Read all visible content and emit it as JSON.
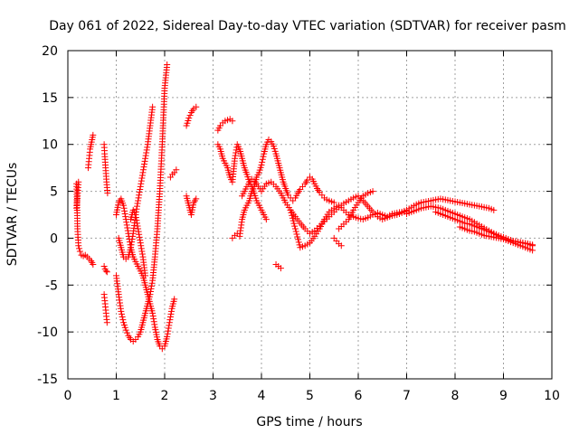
{
  "chart_data": {
    "type": "scatter",
    "title": "Day 061 of 2022, Sidereal Day-to-day VTEC variation (SDTVAR) for receiver pasm",
    "xlabel": "GPS time / hours",
    "ylabel": "SDTVAR / TECUs",
    "xlim": [
      0,
      10
    ],
    "ylim": [
      -15,
      20
    ],
    "xticks": [
      0,
      1,
      2,
      3,
      4,
      5,
      6,
      7,
      8,
      9,
      10
    ],
    "yticks": [
      -15,
      -10,
      -5,
      0,
      5,
      10,
      15,
      20
    ],
    "grid": true,
    "marker": "+",
    "color": "#ff0000",
    "series": [
      {
        "name": "s1",
        "x": [
          0.18,
          0.2,
          0.22,
          0.25,
          0.28,
          0.32,
          0.36,
          0.4,
          0.44,
          0.48,
          0.5,
          0.52
        ],
        "y": [
          5.8,
          1.0,
          -0.8,
          -1.4,
          -1.8,
          -1.9,
          -1.8,
          -2.0,
          -2.2,
          -2.4,
          -2.6,
          -2.8
        ]
      },
      {
        "name": "s2",
        "x": [
          0.18,
          0.2,
          0.22
        ],
        "y": [
          3.2,
          4.5,
          6.0
        ]
      },
      {
        "name": "s3",
        "x": [
          0.42,
          0.44,
          0.46,
          0.48,
          0.5,
          0.52
        ],
        "y": [
          7.5,
          8.5,
          9.5,
          10.0,
          10.5,
          11.0
        ]
      },
      {
        "name": "s4",
        "x": [
          0.75,
          0.76,
          0.78,
          0.8,
          0.82
        ],
        "y": [
          10.0,
          9.0,
          7.5,
          6.0,
          4.8
        ]
      },
      {
        "name": "s5",
        "x": [
          0.75,
          0.77,
          0.79,
          0.81
        ],
        "y": [
          -3.0,
          -3.3,
          -3.5,
          -3.6
        ]
      },
      {
        "name": "s6",
        "x": [
          0.75,
          0.77,
          0.79,
          0.81
        ],
        "y": [
          -6.0,
          -7.0,
          -8.0,
          -9.0
        ]
      },
      {
        "name": "s7",
        "x": [
          1.0,
          1.05,
          1.1,
          1.15,
          1.2,
          1.25,
          1.3,
          1.35,
          1.4,
          1.45,
          1.5,
          1.55,
          1.6,
          1.65,
          1.7,
          1.75,
          1.8,
          1.85,
          1.9,
          1.95,
          2.0,
          2.05
        ],
        "y": [
          -4.0,
          -6.0,
          -7.8,
          -9.0,
          -9.8,
          -10.4,
          -10.8,
          -11.0,
          -10.8,
          -10.5,
          -10.0,
          -9.0,
          -8.0,
          -7.0,
          -6.0,
          -4.5,
          -2.0,
          1.0,
          5.0,
          10.0,
          16.0,
          18.5
        ]
      },
      {
        "name": "s8",
        "x": [
          1.0,
          1.05,
          1.1,
          1.15,
          1.2,
          1.25,
          1.3,
          1.35,
          1.4,
          1.45,
          1.5,
          1.55,
          1.6,
          1.65,
          1.7,
          1.75,
          1.8,
          1.85,
          1.9,
          1.95,
          2.0,
          2.05,
          2.1,
          2.15,
          2.2
        ],
        "y": [
          2.5,
          3.8,
          4.2,
          3.5,
          2.0,
          0.5,
          -1.0,
          -2.0,
          -2.5,
          -3.0,
          -3.5,
          -4.0,
          -5.0,
          -6.0,
          -7.0,
          -8.0,
          -9.5,
          -10.8,
          -11.5,
          -11.8,
          -11.5,
          -10.5,
          -9.0,
          -7.5,
          -6.5
        ]
      },
      {
        "name": "s9",
        "x": [
          1.05,
          1.1,
          1.15,
          1.2,
          1.25,
          1.3,
          1.35,
          1.4,
          1.45,
          1.5,
          1.55,
          1.6,
          1.65,
          1.7,
          1.75
        ],
        "y": [
          0.0,
          -1.0,
          -2.0,
          -2.2,
          -2.0,
          -1.0,
          0.5,
          2.5,
          4.0,
          5.5,
          7.0,
          8.5,
          10.0,
          12.0,
          14.0
        ]
      },
      {
        "name": "s10",
        "x": [
          1.3,
          1.35,
          1.4,
          1.45,
          1.5,
          1.55,
          1.6
        ],
        "y": [
          2.0,
          3.0,
          2.5,
          1.0,
          -0.5,
          -2.0,
          -4.0
        ]
      },
      {
        "name": "s11",
        "x": [
          2.12,
          2.16,
          2.2,
          2.24
        ],
        "y": [
          6.5,
          6.8,
          7.0,
          7.3
        ]
      },
      {
        "name": "s12",
        "x": [
          2.45,
          2.5,
          2.55,
          2.6,
          2.65
        ],
        "y": [
          12.0,
          12.8,
          13.4,
          13.8,
          14.0
        ]
      },
      {
        "name": "s13",
        "x": [
          2.45,
          2.5,
          2.55,
          2.6,
          2.65
        ],
        "y": [
          4.5,
          3.5,
          2.5,
          3.8,
          4.2
        ]
      },
      {
        "name": "s14",
        "x": [
          3.1,
          3.15,
          3.2,
          3.25,
          3.3,
          3.35,
          3.4,
          3.45,
          3.5,
          3.55,
          3.6,
          3.65,
          3.7,
          3.75,
          3.8,
          3.85,
          3.9,
          3.95,
          4.0,
          4.05,
          4.1
        ],
        "y": [
          10.0,
          9.5,
          8.5,
          8.0,
          7.5,
          6.5,
          6.0,
          8.5,
          10.0,
          9.5,
          8.5,
          7.5,
          6.8,
          6.0,
          5.5,
          4.8,
          4.0,
          3.5,
          3.0,
          2.5,
          2.0
        ]
      },
      {
        "name": "s15",
        "x": [
          3.1,
          3.15,
          3.2,
          3.25,
          3.3,
          3.35,
          3.4
        ],
        "y": [
          11.5,
          12.0,
          12.3,
          12.5,
          12.6,
          12.7,
          12.5
        ]
      },
      {
        "name": "s16",
        "x": [
          3.4,
          3.45,
          3.5,
          3.55,
          3.6,
          3.65,
          3.7,
          3.75,
          3.8,
          3.85,
          3.9,
          3.95,
          4.0,
          4.05,
          4.1,
          4.15,
          4.2,
          4.25,
          4.3,
          4.35,
          4.4,
          4.45,
          4.5,
          4.55,
          4.6,
          4.65,
          4.7,
          4.75,
          4.8,
          4.85,
          4.9,
          4.95,
          5.0,
          5.05,
          5.1,
          5.15,
          5.2,
          5.25,
          5.3,
          5.35,
          5.4,
          5.45,
          5.5
        ],
        "y": [
          0.0,
          0.3,
          0.5,
          0.2,
          2.0,
          3.0,
          3.5,
          4.0,
          5.0,
          5.5,
          6.5,
          7.0,
          7.8,
          9.0,
          10.0,
          10.5,
          10.3,
          9.8,
          9.0,
          8.0,
          7.0,
          6.0,
          5.3,
          4.6,
          4.3,
          4.0,
          4.3,
          4.8,
          5.2,
          5.5,
          5.8,
          6.2,
          6.5,
          6.3,
          5.8,
          5.3,
          4.9,
          4.6,
          4.3,
          4.1,
          4.0,
          3.9,
          3.8
        ]
      },
      {
        "name": "s17",
        "x": [
          3.6,
          3.7,
          3.8,
          3.9,
          4.0,
          4.1,
          4.2,
          4.3,
          4.4,
          4.5,
          4.6,
          4.7,
          4.8,
          4.9,
          5.0,
          5.1,
          5.2,
          5.3,
          5.4,
          5.5,
          5.6,
          5.7,
          5.8,
          5.9,
          6.0,
          6.1,
          6.2,
          6.3,
          6.4,
          6.5,
          6.6,
          6.7,
          6.8,
          6.9,
          7.0
        ],
        "y": [
          4.5,
          5.5,
          6.3,
          5.8,
          5.0,
          5.8,
          6.0,
          5.5,
          4.8,
          3.8,
          3.0,
          2.3,
          1.6,
          1.0,
          0.5,
          0.8,
          1.3,
          1.8,
          2.3,
          2.8,
          3.3,
          3.7,
          4.0,
          4.3,
          4.5,
          4.0,
          3.4,
          2.8,
          2.3,
          2.0,
          2.2,
          2.4,
          2.5,
          2.7,
          2.9
        ]
      },
      {
        "name": "s18",
        "x": [
          4.3,
          4.35,
          4.4
        ],
        "y": [
          -2.8,
          -3.0,
          -3.2
        ]
      },
      {
        "name": "s19",
        "x": [
          4.6,
          4.7,
          4.8,
          4.9,
          5.0,
          5.1,
          5.2,
          5.3,
          5.4,
          5.5,
          5.6,
          5.7,
          5.8,
          5.9,
          6.0,
          6.1,
          6.2,
          6.3,
          6.4,
          6.5,
          6.6,
          6.7,
          6.8,
          6.9,
          7.0
        ],
        "y": [
          3.0,
          1.0,
          -1.0,
          -0.8,
          -0.5,
          0.2,
          1.0,
          2.0,
          2.8,
          3.2,
          3.5,
          3.0,
          2.5,
          2.3,
          2.1,
          2.0,
          2.2,
          2.5,
          2.7,
          2.5,
          2.3,
          2.6,
          2.7,
          2.8,
          3.0
        ]
      },
      {
        "name": "s20",
        "x": [
          5.6,
          5.7,
          5.8,
          5.9,
          6.0,
          6.1,
          6.2,
          6.3
        ],
        "y": [
          1.0,
          1.5,
          2.0,
          3.0,
          3.8,
          4.5,
          4.8,
          5.0
        ]
      },
      {
        "name": "s21",
        "x": [
          5.5,
          5.55,
          5.6,
          5.65
        ],
        "y": [
          0.0,
          -0.3,
          -0.6,
          -0.8
        ]
      },
      {
        "name": "s22",
        "x": [
          7.0,
          7.1,
          7.2,
          7.3,
          7.4,
          7.5,
          7.6,
          7.7,
          7.8,
          7.9,
          8.0,
          8.1,
          8.2,
          8.3,
          8.4,
          8.5,
          8.6,
          8.7,
          8.8
        ],
        "y": [
          3.0,
          3.3,
          3.6,
          3.8,
          3.9,
          4.0,
          4.1,
          4.2,
          4.1,
          4.0,
          3.9,
          3.8,
          3.7,
          3.6,
          3.5,
          3.4,
          3.3,
          3.2,
          3.0
        ]
      },
      {
        "name": "s23",
        "x": [
          7.0,
          7.1,
          7.2,
          7.3,
          7.4,
          7.5,
          7.6,
          7.7,
          7.8,
          7.9,
          8.0,
          8.1,
          8.2,
          8.3,
          8.4,
          8.5,
          8.6,
          8.7,
          8.8,
          8.9,
          9.0,
          9.1,
          9.2,
          9.3,
          9.4,
          9.5,
          9.6
        ],
        "y": [
          2.6,
          2.8,
          3.0,
          3.2,
          3.3,
          3.4,
          3.3,
          3.2,
          3.0,
          2.8,
          2.6,
          2.4,
          2.2,
          2.0,
          1.7,
          1.4,
          1.1,
          0.8,
          0.5,
          0.2,
          -0.1,
          -0.3,
          -0.5,
          -0.7,
          -0.9,
          -1.1,
          -1.3
        ]
      },
      {
        "name": "s24",
        "x": [
          7.6,
          7.7,
          7.8,
          7.9,
          8.0,
          8.1,
          8.2,
          8.3,
          8.4,
          8.5,
          8.6,
          8.7,
          8.8,
          8.9,
          9.0,
          9.1,
          9.2,
          9.3,
          9.4,
          9.5,
          9.6
        ],
        "y": [
          2.8,
          2.6,
          2.4,
          2.2,
          2.0,
          1.8,
          1.6,
          1.5,
          1.3,
          1.1,
          0.9,
          0.7,
          0.5,
          0.3,
          0.1,
          -0.1,
          -0.3,
          -0.4,
          -0.5,
          -0.6,
          -0.8
        ]
      },
      {
        "name": "s25",
        "x": [
          8.1,
          8.2,
          8.3,
          8.4,
          8.5,
          8.6,
          8.7,
          8.8,
          8.9,
          9.0,
          9.1,
          9.2,
          9.3,
          9.4,
          9.5,
          9.6
        ],
        "y": [
          1.2,
          1.0,
          0.8,
          0.7,
          0.5,
          0.3,
          0.2,
          0.1,
          0.0,
          -0.1,
          -0.2,
          -0.3,
          -0.4,
          -0.5,
          -0.6,
          -0.7
        ]
      }
    ]
  }
}
